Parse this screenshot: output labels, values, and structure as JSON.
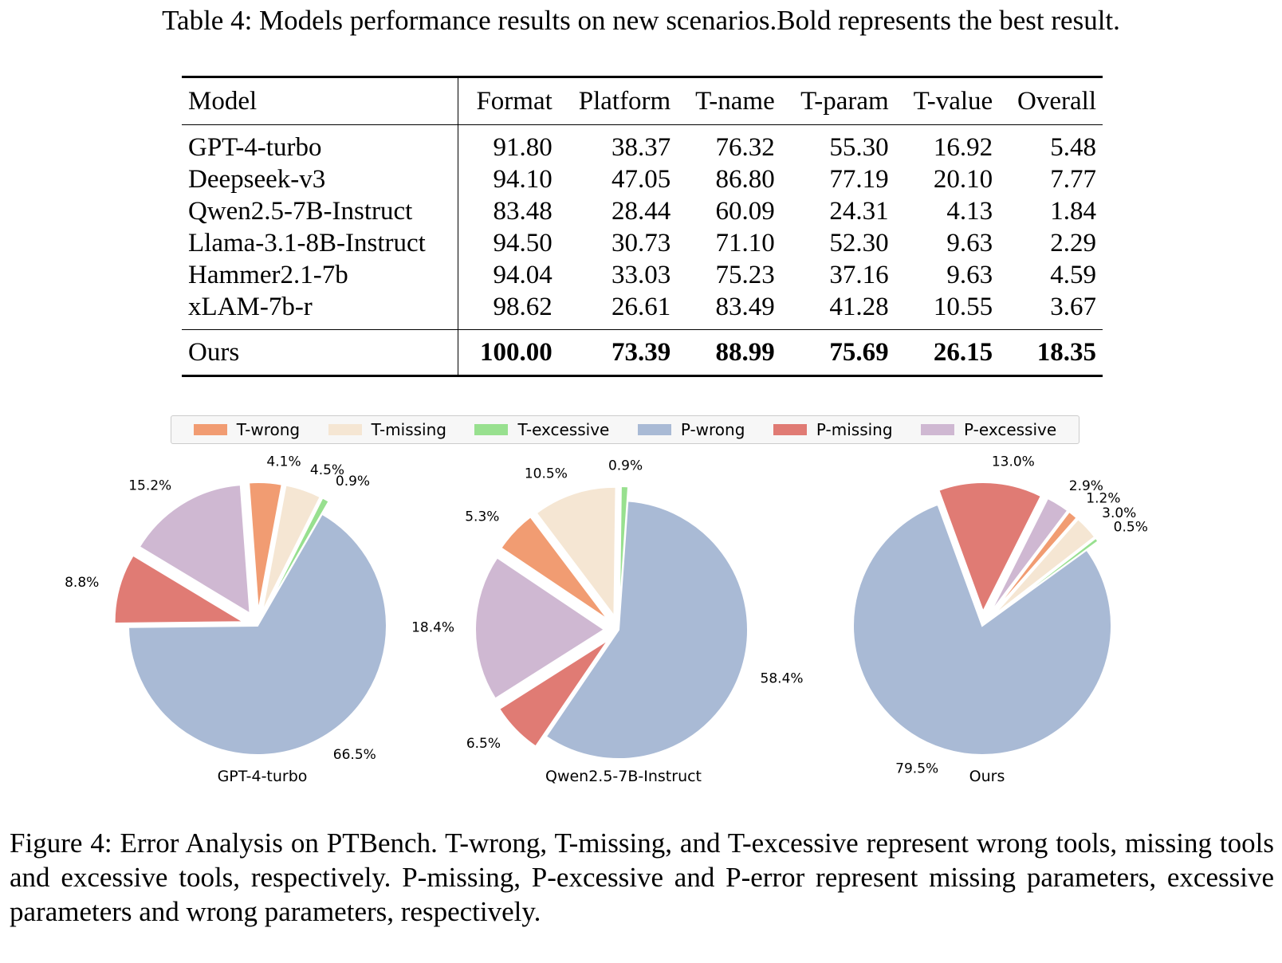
{
  "table": {
    "caption": "Table 4: Models performance results on new scenarios.Bold represents the best result.",
    "headers": [
      "Model",
      "Format",
      "Platform",
      "T-name",
      "T-param",
      "T-value",
      "Overall"
    ],
    "rows": [
      [
        "GPT-4-turbo",
        "91.80",
        "38.37",
        "76.32",
        "55.30",
        "16.92",
        "5.48"
      ],
      [
        "Deepseek-v3",
        "94.10",
        "47.05",
        "86.80",
        "77.19",
        "20.10",
        "7.77"
      ],
      [
        "Qwen2.5-7B-Instruct",
        "83.48",
        "28.44",
        "60.09",
        "24.31",
        "4.13",
        "1.84"
      ],
      [
        "Llama-3.1-8B-Instruct",
        "94.50",
        "30.73",
        "71.10",
        "52.30",
        "9.63",
        "2.29"
      ],
      [
        "Hammer2.1-7b",
        "94.04",
        "33.03",
        "75.23",
        "37.16",
        "9.63",
        "4.59"
      ],
      [
        "xLAM-7b-r",
        "98.62",
        "26.61",
        "83.49",
        "41.28",
        "10.55",
        "3.67"
      ]
    ],
    "ours_row": [
      "Ours",
      "100.00",
      "73.39",
      "88.99",
      "75.69",
      "26.15",
      "18.35"
    ]
  },
  "legend": [
    {
      "label": "T-wrong",
      "color": "#f19c72"
    },
    {
      "label": "T-missing",
      "color": "#f5e6d3"
    },
    {
      "label": "T-excessive",
      "color": "#98e08f"
    },
    {
      "label": "P-wrong",
      "color": "#a9bad5"
    },
    {
      "label": "P-missing",
      "color": "#e07b74"
    },
    {
      "label": "P-excessive",
      "color": "#cfb8d2"
    }
  ],
  "chart_data": [
    {
      "type": "pie",
      "title": "GPT-4-turbo",
      "start_angle_deg": 60,
      "slices": [
        {
          "label": "T-excessive",
          "value": 0.9,
          "text": "0.9%"
        },
        {
          "label": "T-missing",
          "value": 4.5,
          "text": "4.5%"
        },
        {
          "label": "T-wrong",
          "value": 4.1,
          "text": "4.1%"
        },
        {
          "label": "P-excessive",
          "value": 15.2,
          "text": "15.2%"
        },
        {
          "label": "P-missing",
          "value": 8.8,
          "text": "8.8%"
        },
        {
          "label": "P-wrong",
          "value": 66.5,
          "text": "66.5%"
        }
      ]
    },
    {
      "type": "pie",
      "title": "Qwen2.5-7B-Instruct",
      "start_angle_deg": 86,
      "slices": [
        {
          "label": "T-excessive",
          "value": 0.9,
          "text": "0.9%"
        },
        {
          "label": "T-missing",
          "value": 10.5,
          "text": "10.5%"
        },
        {
          "label": "T-wrong",
          "value": 5.3,
          "text": "5.3%"
        },
        {
          "label": "P-excessive",
          "value": 18.4,
          "text": "18.4%"
        },
        {
          "label": "P-missing",
          "value": 6.5,
          "text": "6.5%"
        },
        {
          "label": "P-wrong",
          "value": 58.4,
          "text": "58.4%"
        }
      ]
    },
    {
      "type": "pie",
      "title": "Ours",
      "start_angle_deg": 36,
      "slices": [
        {
          "label": "T-excessive",
          "value": 0.5,
          "text": "0.5%"
        },
        {
          "label": "T-missing",
          "value": 3.0,
          "text": "3.0%"
        },
        {
          "label": "T-wrong",
          "value": 1.2,
          "text": "1.2%"
        },
        {
          "label": "P-excessive",
          "value": 2.9,
          "text": "2.9%"
        },
        {
          "label": "P-missing",
          "value": 13.0,
          "text": "13.0%"
        },
        {
          "label": "P-wrong",
          "value": 79.5,
          "text": "79.5%"
        }
      ]
    }
  ],
  "figure_caption": "Figure 4: Error Analysis on PTBench. T-wrong, T-missing, and T-excessive represent wrong tools, missing tools and excessive tools, respectively. P-missing, P-excessive and P-error represent missing parameters, excessive parameters and wrong parameters, respectively."
}
